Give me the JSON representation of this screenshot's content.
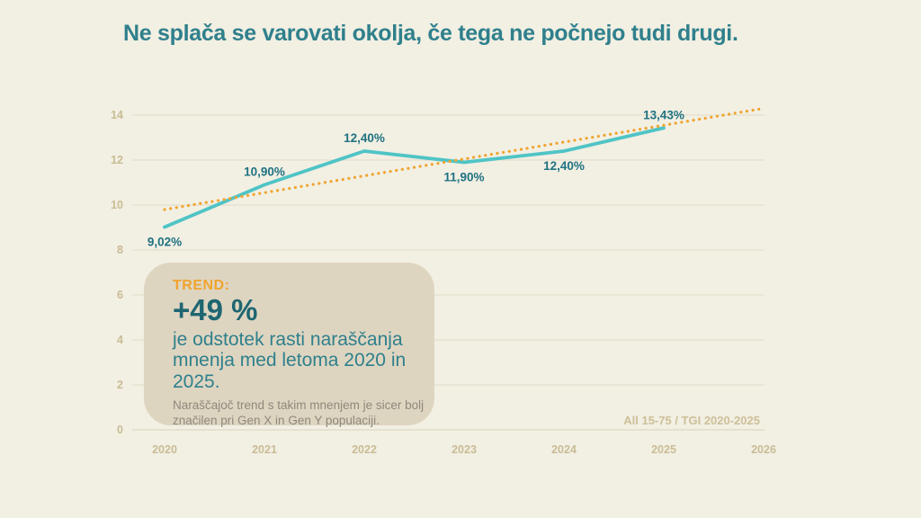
{
  "title": "Ne splača se varovati okolja, če tega ne počnejo tudi drugi.",
  "colors": {
    "background": "#f2efe3",
    "title_teal": "#2f808c",
    "line_teal": "#4fc4c6",
    "trend_orange": "#f0a42c",
    "data_label_teal": "#1f7282",
    "axis_label_tan": "#c9bc95",
    "gridline": "#e5dfcb",
    "callout_background": "#ded5c1",
    "callout_headline_teal": "#1e6671",
    "callout_note_gray": "#8e897b",
    "source_tan": "#cdbf98"
  },
  "chart_data": {
    "type": "line",
    "title": "Ne splača se varovati okolja, če tega ne počnejo tudi drugi.",
    "x": [
      2020,
      2021,
      2022,
      2023,
      2024,
      2025,
      2026
    ],
    "x_tick_labels": [
      "2020",
      "2021",
      "2022",
      "2023",
      "2024",
      "2025",
      "2026"
    ],
    "y_ticks": [
      0,
      2,
      4,
      6,
      8,
      10,
      12,
      14
    ],
    "ylim": [
      0,
      14
    ],
    "grid": true,
    "legend": false,
    "series": [
      {
        "name": "share-agreeing",
        "x": [
          2020,
          2021,
          2022,
          2023,
          2024,
          2025
        ],
        "values": [
          9.02,
          10.9,
          12.4,
          11.9,
          12.4,
          13.43
        ],
        "labels": [
          "9,02%",
          "10,90%",
          "12,40%",
          "11,90%",
          "12,40%",
          "13,43%"
        ],
        "label_positions": [
          "below",
          "above",
          "above",
          "below",
          "below",
          "above"
        ],
        "color": "#4fc4c6",
        "style": "solid"
      },
      {
        "name": "trend-projection",
        "x": [
          2020,
          2026
        ],
        "values": [
          9.8,
          14.3
        ],
        "labels": null,
        "label_positions": null,
        "color": "#f0a42c",
        "style": "dotted"
      }
    ]
  },
  "callout": {
    "label": "TREND:",
    "headline": "+49 %",
    "body": "je odstotek rasti naraščanja mnenja med letoma 2020 in 2025.",
    "note": "Naraščajoč trend s takim mnenjem je sicer bolj značilen pri Gen X in Gen Y populaciji."
  },
  "source_note": "All 15-75 / TGI 2020-2025"
}
